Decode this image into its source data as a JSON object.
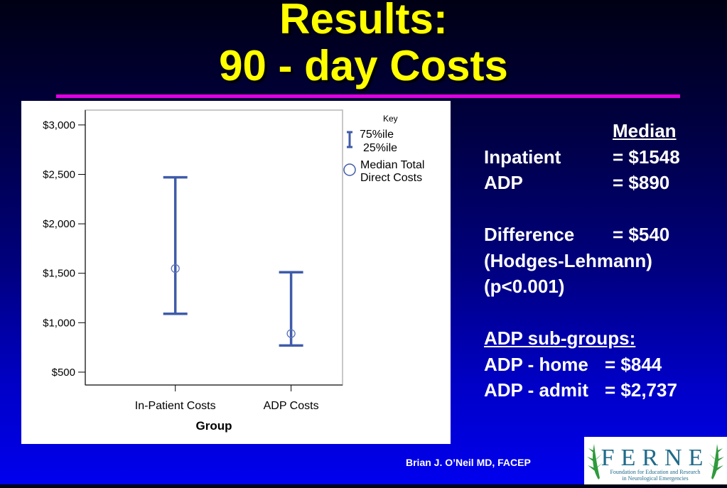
{
  "slide": {
    "title_line1": "Results:",
    "title_line2": "90 - day Costs",
    "footer": "Brian J. O’Neil MD, FACEP",
    "accent_rule_color": "#e000e0",
    "title_color": "#ffff00"
  },
  "stats": {
    "median_header": "Median",
    "rows": [
      {
        "label": "Inpatient",
        "value": "= $1548"
      },
      {
        "label": "ADP",
        "value": "= $890"
      },
      {
        "label": "",
        "value": ""
      },
      {
        "label": "Difference",
        "value": "= $540"
      },
      {
        "label": "(Hodges-Lehmann)",
        "value": ""
      },
      {
        "label": "(p<0.001)",
        "value": ""
      },
      {
        "label": "",
        "value": ""
      },
      {
        "label": "ADP sub-groups:",
        "value": ""
      },
      {
        "label": "ADP - home",
        "value": "= $844"
      },
      {
        "label": "ADP - admit",
        "value": "= $2,737"
      }
    ]
  },
  "chart_data": {
    "type": "error-bar",
    "categories": [
      "In-Patient Costs",
      "ADP Costs"
    ],
    "series": [
      {
        "name": "Median Total Direct Costs",
        "median": [
          1548,
          890
        ],
        "p25": [
          1090,
          770
        ],
        "p75": [
          2470,
          1510
        ]
      }
    ],
    "xlabel": "Group",
    "ylabel": "",
    "yticks": [
      "$500",
      "$1,000",
      "$1,500",
      "$2,000",
      "$2,500",
      "$3,000"
    ],
    "ytick_values": [
      500,
      1000,
      1500,
      2000,
      2500,
      3000
    ],
    "ylim": [
      370,
      3150
    ],
    "legend": {
      "title": "Key",
      "bar_label_top": "75%ile",
      "bar_label_bottom": "25%ile",
      "marker_label_line1": "Median Total",
      "marker_label_line2": "Direct Costs",
      "placement": "right"
    },
    "colors": {
      "series": "#3f5ba9",
      "marker": "#5a72b8"
    }
  },
  "logo": {
    "text": "FERNE",
    "subtitle_line1": "Foundation for Education and Research",
    "subtitle_line2": "in Neurological Emergencies",
    "color": "#1f6b8a",
    "leaf_color": "#2e9a3c"
  }
}
